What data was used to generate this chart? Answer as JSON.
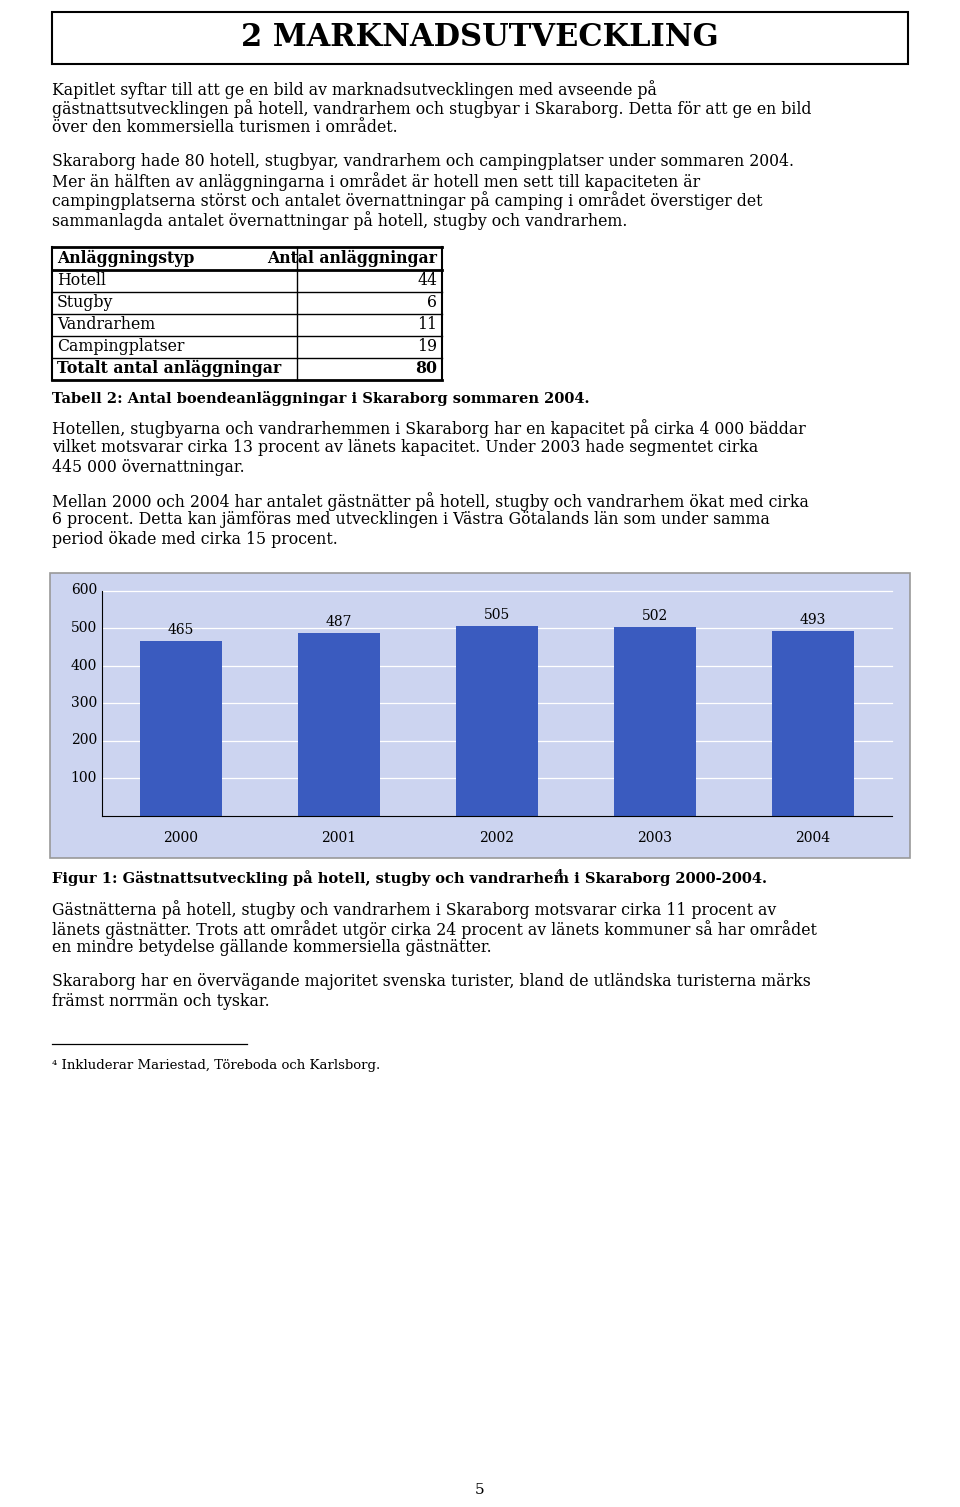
{
  "title": "2 MARKNADSUTVECKLING",
  "para1": "Kapitlet syftar till att ge en bild av marknadsutvecklingen med avseende på gästnattsutvecklingen på hotell, vandrarhem och stugbyar i Skaraborg. Detta för att ge en bild över den kommersiella turismen i området.",
  "para2_line1": "Skaraborg hade 80 hotell, stugbyar, vandrarhem och campingplatser under sommaren 2004.",
  "para2_line2": "Mer än hälften av anläggningarna i området är hotell men sett till kapaciteten är campingplatserna störst och antalet övernattningar på camping i området överstiger det sammanlagda antalet övernattningar på hotell, stugby och vandrarhem.",
  "table_headers": [
    "Anläggningstyp",
    "Antal anläggningar"
  ],
  "table_rows": [
    [
      "Hotell",
      "44"
    ],
    [
      "Stugby",
      "6"
    ],
    [
      "Vandrarhem",
      "11"
    ],
    [
      "Campingplatser",
      "19"
    ]
  ],
  "table_total_row": [
    "Totalt antal anläggningar",
    "80"
  ],
  "table_caption": "Tabell 2: Antal boendeanläggningar i Skaraborg sommaren 2004.",
  "para3": "Hotellen, stugbyarna och vandrarhemmen i Skaraborg har en kapacitet på cirka 4 000 bäddar vilket motsvarar circa 13 procent av länets kapacitet. Under 2003 hade segmentet circa 445 000 övernattningar.",
  "para3_l1": "Hotellen, stugbyarna och vandrarhemmen i Skaraborg har en kapacitet på cirka 4 000 bäddar",
  "para3_l2": "vilket motsvarar cirka 13 procent av länets kapacitet. Under 2003 hade segmentet cirka",
  "para3_l3": "445 000 övernattningar.",
  "para4_l1": "Mellan 2000 och 2004 har antalet gästnätter på hotell, stugby och vandrarhem ökat med cirka",
  "para4_l2": "6 procent. Detta kan jämföras med utvecklingen i Västra Götalands län som under samma",
  "para4_l3": "period ökade med cirka 15 procent.",
  "bar_years": [
    "2000",
    "2001",
    "2002",
    "2003",
    "2004"
  ],
  "bar_values": [
    465,
    487,
    505,
    502,
    493
  ],
  "bar_color": "#3a5bbf",
  "chart_bg_color": "#ccd4f0",
  "chart_ylim": [
    0,
    600
  ],
  "chart_yticks": [
    100,
    200,
    300,
    400,
    500,
    600
  ],
  "fig_caption_main": "Figur 1: Gästnattsutveckling på hotell, stugby och vandrarhem i Skaraborg 2000-2004.",
  "fig_caption_sup": "4",
  "para5_l1": "Gästnätterna på hotell, stugby och vandrarhem i Skaraborg motsvarar cirka 11 procent av",
  "para5_l2": "länets gästnätter. Trots att området utgör cirka 24 procent av länets kommuner så har området",
  "para5_l3": "en mindre betydelse gällande kommersiella gästnätter.",
  "para6_l1": "Skaraborg har en övervägande majoritet svenska turister, bland de utländska turisterna märks",
  "para6_l2": "främst norrmän och tyskar.",
  "footnote": "⁴ Inkluderar Mariestad, Töreboda och Karlsborg.",
  "page_number": "5",
  "bg_color": "#ffffff",
  "text_color": "#000000",
  "para1_lines": [
    "Kapitlet syftar till att ge en bild av marknadsutvecklingen med avseende på",
    "gästnattsutvecklingen på hotell, vandrarhem och stugbyar i Skaraborg. Detta för att ge en bild",
    "över den kommersiella turismen i området."
  ],
  "para2_lines": [
    "Skaraborg hade 80 hotell, stugbyar, vandrarhem och campingplatser under sommaren 2004.",
    "Mer än hälften av anläggningarna i området är hotell men sett till kapaciteten är",
    "campingplatserna störst och antalet övernattningar på camping i området överstiger det",
    "sammanlagda antalet övernattningar på hotell, stugby och vandrarhem."
  ],
  "para3_lines": [
    "Hotellen, stugbyarna och vandrarhemmen i Skaraborg har en kapacitet på cirka 4 000 bäddar",
    "vilket motsvarar cirka 13 procent av länets kapacitet. Under 2003 hade segmentet cirka",
    "445 000 övernattningar."
  ],
  "para4_lines": [
    "Mellan 2000 och 2004 har antalet gästnätter på hotell, stugby och vandrarhem ökat med cirka",
    "6 procent. Detta kan jämföras med utvecklingen i Västra Götalands län som under samma",
    "period ökade med cirka 15 procent."
  ],
  "para5_lines": [
    "Gästnätterna på hotell, stugby och vandrarhem i Skaraborg motsvarar cirka 11 procent av",
    "länets gästnätter. Trots att området utgör cirka 24 procent av länets kommuner så har området",
    "en mindre betydelse gällande kommersiella gästnätter."
  ],
  "para6_lines": [
    "Skaraborg har en övervägande majoritet svenska turister, bland de utländska turisterna märks",
    "främst norrmän och tyskar."
  ]
}
